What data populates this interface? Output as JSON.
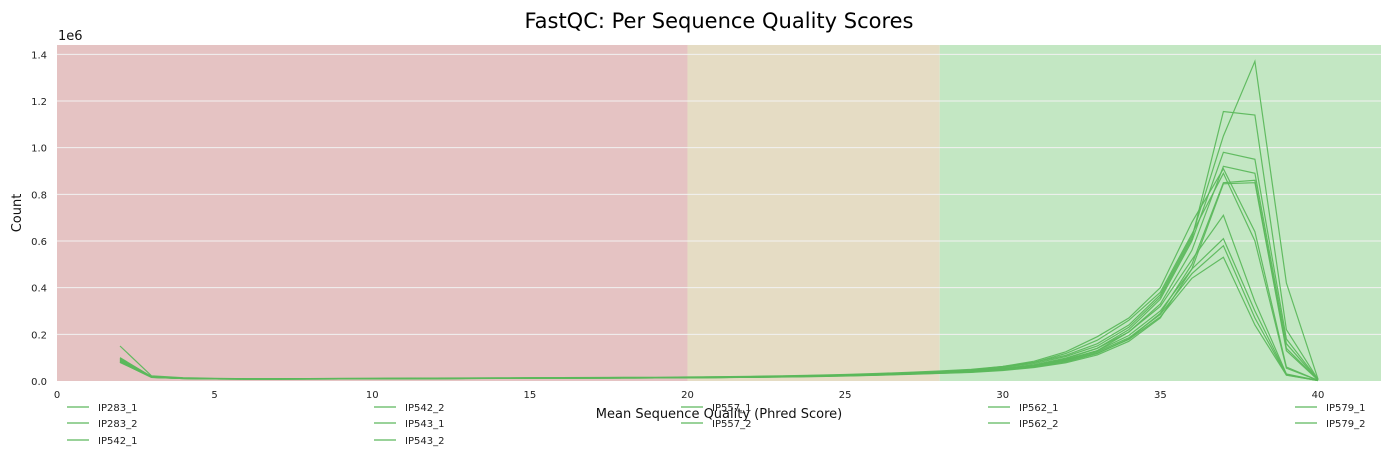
{
  "chart_data": {
    "type": "line",
    "title": "FastQC: Per Sequence Quality Scores",
    "xlabel": "Mean Sequence Quality (Phred Score)",
    "ylabel": "Count",
    "y_multiplier": "1e6",
    "xlim": [
      0,
      42
    ],
    "ylim": [
      0,
      1440000
    ],
    "xticks": [
      0,
      5,
      10,
      15,
      20,
      25,
      30,
      35,
      40
    ],
    "yticks": [
      0,
      200000,
      400000,
      600000,
      800000,
      1000000,
      1200000,
      1400000
    ],
    "ytick_labels": [
      "0.0",
      "0.2",
      "0.4",
      "0.6",
      "0.8",
      "1.0",
      "1.2",
      "1.4"
    ],
    "grid": true,
    "legend_position": "bottom",
    "zones": [
      {
        "from": 0,
        "to": 20,
        "color": "#e5c3c3"
      },
      {
        "from": 20,
        "to": 28,
        "color": "#e5dcc4"
      },
      {
        "from": 28,
        "to": 42,
        "color": "#c3e7c3"
      }
    ],
    "line_color": "#5cb85c",
    "x": [
      2,
      3,
      4,
      5,
      6,
      7,
      8,
      9,
      10,
      11,
      12,
      13,
      14,
      15,
      16,
      17,
      18,
      19,
      20,
      21,
      22,
      23,
      24,
      25,
      26,
      27,
      28,
      29,
      30,
      31,
      32,
      33,
      34,
      35,
      36,
      37,
      38,
      39,
      40
    ],
    "series": [
      {
        "name": "IP283_1",
        "values": [
          95000,
          18000,
          12000,
          10000,
          9000,
          9000,
          9500,
          10000,
          10500,
          11000,
          11500,
          12000,
          12500,
          13000,
          13000,
          13500,
          14000,
          14000,
          15000,
          16000,
          17000,
          19000,
          21000,
          24000,
          27000,
          31000,
          36000,
          42000,
          52000,
          68000,
          95000,
          140000,
          220000,
          350000,
          600000,
          980000,
          950000,
          180000,
          6000
        ]
      },
      {
        "name": "IP283_2",
        "values": [
          90000,
          17000,
          11500,
          9500,
          8800,
          8800,
          9000,
          9500,
          10000,
          10500,
          11000,
          11500,
          12000,
          12500,
          12800,
          13000,
          13500,
          13800,
          14500,
          15500,
          16500,
          18000,
          20000,
          23000,
          26000,
          30000,
          35000,
          40000,
          50000,
          65000,
          90000,
          130000,
          210000,
          330000,
          560000,
          920000,
          890000,
          160000,
          5000
        ]
      },
      {
        "name": "IP542_1",
        "values": [
          150000,
          22000,
          14000,
          11500,
          10000,
          10000,
          10500,
          11000,
          11500,
          12000,
          12500,
          13000,
          13500,
          14000,
          14500,
          15000,
          15500,
          16000,
          17000,
          18500,
          20000,
          22000,
          25000,
          28000,
          32000,
          37000,
          43000,
          50000,
          62000,
          80000,
          110000,
          160000,
          240000,
          370000,
          620000,
          1050000,
          1370000,
          420000,
          8000
        ]
      },
      {
        "name": "IP542_2",
        "values": [
          100000,
          19000,
          12500,
          10500,
          9500,
          9500,
          10000,
          10500,
          11000,
          11500,
          12000,
          12500,
          13000,
          13500,
          13800,
          14200,
          14800,
          15200,
          16000,
          17500,
          19000,
          21000,
          23500,
          26500,
          30000,
          35000,
          40000,
          47000,
          58000,
          75000,
          105000,
          150000,
          230000,
          360000,
          610000,
          1155000,
          1140000,
          220000,
          7000
        ]
      },
      {
        "name": "IP543_1",
        "values": [
          85000,
          16000,
          11000,
          9200,
          8500,
          8500,
          8800,
          9200,
          9600,
          10000,
          10500,
          11000,
          11500,
          12000,
          12300,
          12700,
          13000,
          13400,
          14000,
          15000,
          16000,
          17500,
          19500,
          22000,
          25000,
          29000,
          33000,
          38000,
          47000,
          60000,
          82000,
          118000,
          180000,
          290000,
          500000,
          850000,
          860000,
          140000,
          4500
        ]
      },
      {
        "name": "IP543_2",
        "values": [
          80000,
          15500,
          10800,
          9000,
          8300,
          8300,
          8600,
          9000,
          9400,
          9800,
          10300,
          10800,
          11300,
          11800,
          12100,
          12500,
          12800,
          13200,
          13800,
          14700,
          15700,
          17200,
          19000,
          21500,
          24500,
          28500,
          32500,
          37000,
          45000,
          58000,
          78000,
          112000,
          170000,
          270000,
          480000,
          845000,
          850000,
          130000,
          4000
        ]
      },
      {
        "name": "IP557_1",
        "values": [
          98000,
          17500,
          12000,
          10000,
          9200,
          9200,
          9500,
          9900,
          10300,
          10800,
          11300,
          11800,
          12300,
          12800,
          13100,
          13500,
          13900,
          14300,
          15000,
          16000,
          17200,
          19000,
          21500,
          25000,
          29000,
          34000,
          40000,
          48000,
          62000,
          85000,
          125000,
          190000,
          270000,
          400000,
          680000,
          910000,
          640000,
          60000,
          3000
        ]
      },
      {
        "name": "IP557_2",
        "values": [
          92000,
          17000,
          11600,
          9700,
          9000,
          9000,
          9300,
          9700,
          10100,
          10600,
          11100,
          11600,
          12100,
          12600,
          12900,
          13300,
          13700,
          14100,
          14800,
          15800,
          17000,
          18700,
          21000,
          24500,
          28500,
          33000,
          39000,
          46000,
          59000,
          80000,
          118000,
          175000,
          260000,
          380000,
          630000,
          890000,
          600000,
          55000,
          3000
        ]
      },
      {
        "name": "IP562_1",
        "values": [
          88000,
          16500,
          11300,
          9400,
          8700,
          8700,
          9000,
          9400,
          9800,
          10300,
          10800,
          11300,
          11800,
          12300,
          12600,
          13000,
          13400,
          13800,
          14500,
          15500,
          16700,
          18400,
          20500,
          23500,
          27000,
          31500,
          36500,
          43000,
          54000,
          70000,
          98000,
          140000,
          210000,
          320000,
          520000,
          710000,
          340000,
          30000,
          2000
        ]
      },
      {
        "name": "IP562_2",
        "values": [
          84000,
          16000,
          11000,
          9100,
          8500,
          8500,
          8800,
          9200,
          9600,
          10100,
          10600,
          11100,
          11600,
          12100,
          12400,
          12800,
          13200,
          13600,
          14300,
          15300,
          16500,
          18100,
          20200,
          23000,
          26500,
          31000,
          36000,
          42000,
          52000,
          67000,
          92000,
          130000,
          195000,
          300000,
          480000,
          610000,
          300000,
          28000,
          2000
        ]
      },
      {
        "name": "IP579_1",
        "values": [
          82000,
          15800,
          10900,
          9000,
          8400,
          8400,
          8700,
          9100,
          9500,
          10000,
          10500,
          11000,
          11500,
          12000,
          12300,
          12700,
          13100,
          13500,
          14200,
          15200,
          16300,
          17900,
          20000,
          22800,
          26000,
          30500,
          35500,
          41000,
          50000,
          64000,
          88000,
          125000,
          185000,
          285000,
          460000,
          580000,
          270000,
          26000,
          2000
        ]
      },
      {
        "name": "IP579_2",
        "values": [
          80000,
          15600,
          10700,
          8900,
          8300,
          8300,
          8600,
          9000,
          9400,
          9900,
          10400,
          10900,
          11400,
          11900,
          12200,
          12600,
          13000,
          13400,
          14100,
          15000,
          16100,
          17700,
          19800,
          22500,
          25700,
          30000,
          35000,
          40000,
          49000,
          62000,
          85000,
          120000,
          178000,
          275000,
          440000,
          530000,
          240000,
          25000,
          2000
        ]
      }
    ]
  }
}
